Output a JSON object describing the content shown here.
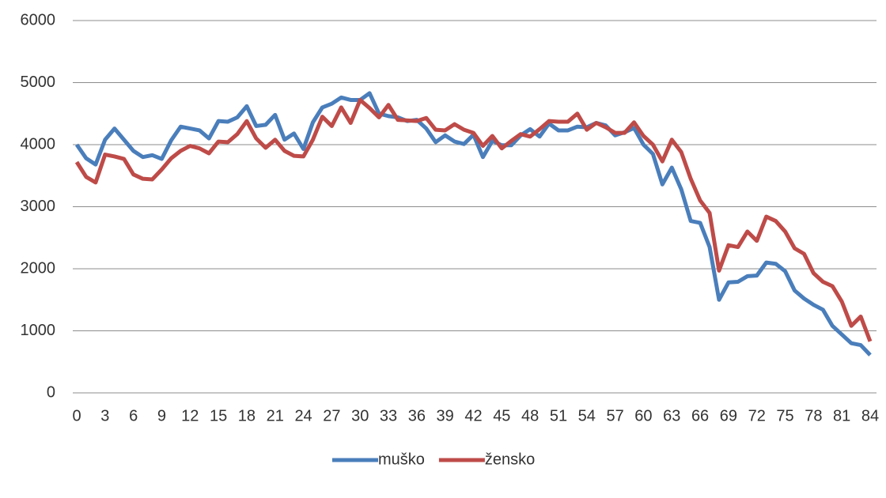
{
  "chart_data": {
    "type": "line",
    "x": [
      0,
      1,
      2,
      3,
      4,
      5,
      6,
      7,
      8,
      9,
      10,
      11,
      12,
      13,
      14,
      15,
      16,
      17,
      18,
      19,
      20,
      21,
      22,
      23,
      24,
      25,
      26,
      27,
      28,
      29,
      30,
      31,
      32,
      33,
      34,
      35,
      36,
      37,
      38,
      39,
      40,
      41,
      42,
      43,
      44,
      45,
      46,
      47,
      48,
      49,
      50,
      51,
      52,
      53,
      54,
      55,
      56,
      57,
      58,
      59,
      60,
      61,
      62,
      63,
      64,
      65,
      66,
      67,
      68,
      69,
      70,
      71,
      72,
      73,
      74,
      75,
      76,
      77,
      78,
      79,
      80,
      81,
      82,
      83,
      84
    ],
    "xlim": [
      0,
      84
    ],
    "xticks": [
      0,
      3,
      6,
      9,
      12,
      15,
      18,
      21,
      24,
      27,
      30,
      33,
      36,
      39,
      42,
      45,
      48,
      51,
      54,
      57,
      60,
      63,
      66,
      69,
      72,
      75,
      78,
      81,
      84
    ],
    "ylim": [
      0,
      6000
    ],
    "yticks": [
      0,
      1000,
      2000,
      3000,
      4000,
      5000,
      6000
    ],
    "grid": true,
    "legend": "bottom",
    "series": [
      {
        "name": "muško",
        "color": "#4a7ebb",
        "values": [
          4000,
          3780,
          3680,
          4080,
          4260,
          4080,
          3900,
          3800,
          3830,
          3770,
          4070,
          4290,
          4260,
          4230,
          4100,
          4380,
          4370,
          4440,
          4620,
          4300,
          4320,
          4480,
          4080,
          4180,
          3930,
          4360,
          4600,
          4660,
          4760,
          4720,
          4720,
          4830,
          4500,
          4460,
          4440,
          4380,
          4400,
          4260,
          4040,
          4150,
          4050,
          4010,
          4160,
          3800,
          4060,
          3990,
          3990,
          4150,
          4250,
          4130,
          4340,
          4230,
          4230,
          4290,
          4280,
          4350,
          4310,
          4150,
          4200,
          4270,
          4000,
          3850,
          3360,
          3630,
          3280,
          2770,
          2740,
          2350,
          1500,
          1780,
          1790,
          1880,
          1890,
          2100,
          2080,
          1960,
          1650,
          1520,
          1420,
          1340,
          1080,
          940,
          800,
          770,
          610
        ]
      },
      {
        "name": "žensko",
        "color": "#be4b48",
        "values": [
          3720,
          3480,
          3390,
          3840,
          3810,
          3770,
          3520,
          3450,
          3440,
          3600,
          3780,
          3900,
          3980,
          3940,
          3860,
          4050,
          4040,
          4170,
          4380,
          4100,
          3950,
          4080,
          3900,
          3820,
          3810,
          4080,
          4450,
          4300,
          4600,
          4350,
          4720,
          4590,
          4440,
          4640,
          4400,
          4390,
          4380,
          4430,
          4240,
          4230,
          4330,
          4240,
          4190,
          3980,
          4140,
          3940,
          4060,
          4170,
          4130,
          4250,
          4380,
          4370,
          4370,
          4500,
          4240,
          4350,
          4280,
          4190,
          4190,
          4360,
          4140,
          4000,
          3730,
          4080,
          3880,
          3450,
          3100,
          2900,
          1970,
          2380,
          2350,
          2600,
          2450,
          2840,
          2770,
          2600,
          2330,
          2240,
          1930,
          1790,
          1720,
          1470,
          1080,
          1230,
          830
        ]
      }
    ]
  }
}
